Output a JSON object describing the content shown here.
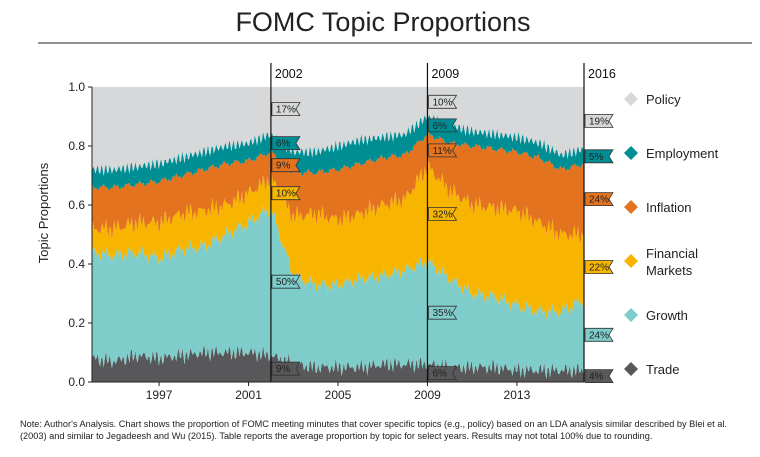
{
  "chart_data": {
    "type": "area",
    "title": "FOMC Topic Proportions",
    "xlabel": "",
    "ylabel": "Topic Proportions",
    "xlim": [
      1994.0,
      2016.0
    ],
    "ylim": [
      0.0,
      1.0
    ],
    "yticks": [
      "0.0",
      "0.2",
      "0.4",
      "0.6",
      "0.8",
      "1.0"
    ],
    "xticks": [
      {
        "label": "1997",
        "x": 1997.0
      },
      {
        "label": "2001",
        "x": 2001.0
      },
      {
        "label": "2005",
        "x": 2005.0
      },
      {
        "label": "2009",
        "x": 2009.0
      },
      {
        "label": "2013",
        "x": 2013.0
      }
    ],
    "markers": [
      {
        "label": "2002",
        "x": 2002.0
      },
      {
        "label": "2009",
        "x": 2009.0
      },
      {
        "label": "2016",
        "x": 2016.0
      }
    ],
    "x": [
      1994.0,
      1995.0,
      1996.0,
      1997.0,
      1998.0,
      1999.0,
      2000.0,
      2001.0,
      2002.0,
      2003.0,
      2004.0,
      2005.0,
      2006.0,
      2007.0,
      2008.0,
      2009.0,
      2010.0,
      2011.0,
      2012.0,
      2013.0,
      2014.0,
      2015.0,
      2016.0
    ],
    "series": [
      {
        "name": "Trade",
        "color": "#58585a",
        "values": [
          0.08,
          0.07,
          0.09,
          0.08,
          0.09,
          0.1,
          0.1,
          0.1,
          0.09,
          0.06,
          0.05,
          0.05,
          0.05,
          0.06,
          0.06,
          0.06,
          0.05,
          0.05,
          0.05,
          0.04,
          0.04,
          0.04,
          0.04
        ]
      },
      {
        "name": "Growth",
        "color": "#7ecdca",
        "values": [
          0.36,
          0.36,
          0.35,
          0.34,
          0.36,
          0.36,
          0.4,
          0.44,
          0.5,
          0.3,
          0.28,
          0.28,
          0.3,
          0.3,
          0.32,
          0.35,
          0.3,
          0.25,
          0.24,
          0.22,
          0.2,
          0.2,
          0.24
        ]
      },
      {
        "name": "Financial Markets",
        "color": "#f7b500",
        "values": [
          0.08,
          0.09,
          0.1,
          0.12,
          0.12,
          0.12,
          0.1,
          0.1,
          0.1,
          0.2,
          0.24,
          0.22,
          0.22,
          0.24,
          0.24,
          0.32,
          0.3,
          0.3,
          0.3,
          0.32,
          0.3,
          0.26,
          0.22
        ]
      },
      {
        "name": "Inflation",
        "color": "#e3731f",
        "values": [
          0.14,
          0.14,
          0.13,
          0.14,
          0.13,
          0.14,
          0.14,
          0.11,
          0.09,
          0.15,
          0.14,
          0.17,
          0.17,
          0.16,
          0.15,
          0.11,
          0.16,
          0.2,
          0.2,
          0.2,
          0.22,
          0.22,
          0.24
        ]
      },
      {
        "name": "Employment",
        "color": "#008e95",
        "values": [
          0.06,
          0.06,
          0.06,
          0.06,
          0.06,
          0.06,
          0.06,
          0.06,
          0.06,
          0.07,
          0.07,
          0.08,
          0.08,
          0.07,
          0.07,
          0.06,
          0.06,
          0.05,
          0.05,
          0.05,
          0.05,
          0.05,
          0.05
        ]
      },
      {
        "name": "Policy",
        "color": "#d6d8d9",
        "values": [
          0.28,
          0.28,
          0.27,
          0.26,
          0.24,
          0.22,
          0.2,
          0.19,
          0.17,
          0.22,
          0.22,
          0.2,
          0.18,
          0.17,
          0.16,
          0.1,
          0.13,
          0.15,
          0.16,
          0.17,
          0.19,
          0.23,
          0.19
        ]
      }
    ],
    "legend": [
      {
        "name": "Policy",
        "color": "#d6d8d9"
      },
      {
        "name": "Employment",
        "color": "#008e95"
      },
      {
        "name": "Inflation",
        "color": "#e3731f"
      },
      {
        "name": "Financial\nMarkets",
        "color": "#f7b500"
      },
      {
        "name": "Growth",
        "color": "#7ecdca"
      },
      {
        "name": "Trade",
        "color": "#58585a"
      }
    ],
    "legend_position": "right",
    "annotations": [
      {
        "year": 2002,
        "labels": [
          "17%",
          "6%",
          "9%",
          "10%",
          "50%",
          "9%"
        ]
      },
      {
        "year": 2009,
        "labels": [
          "10%",
          "6%",
          "11%",
          "32%",
          "35%",
          "6%"
        ]
      },
      {
        "year": 2016,
        "labels": [
          "19%",
          "5%",
          "24%",
          "22%",
          "24%",
          "4%"
        ]
      }
    ],
    "grid": false
  },
  "note": "Note:  Author's Analysis. Chart shows the proportion of FOMC meeting minutes that cover specific topics (e.g., policy) based on an LDA analysis similar described by Blei et al. (2003) and similar to Jegadeesh and Wu (2015). Table reports the average proportion by topic for select years. Results may not total 100% due to rounding."
}
